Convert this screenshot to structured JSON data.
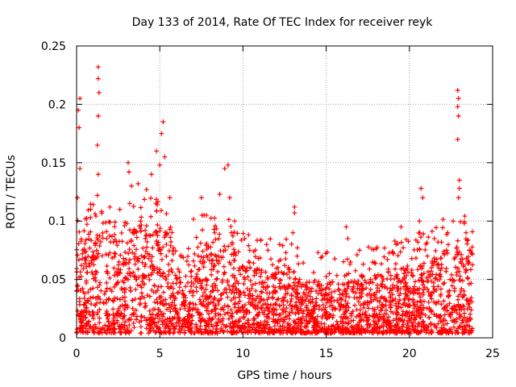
{
  "chart_data": {
    "type": "scatter",
    "title": "Day 133 of 2014, Rate Of TEC Index for receiver reyk",
    "xlabel": "GPS time / hours",
    "ylabel": "ROTI / TECUs",
    "xlim": [
      0,
      25
    ],
    "ylim": [
      0,
      0.25
    ],
    "xticks": [
      "0",
      "5",
      "10",
      "15",
      "20",
      "25"
    ],
    "yticks": [
      "0",
      "0.05",
      "0.1",
      "0.15",
      "0.2",
      "0.25"
    ],
    "grid": true,
    "marker": "+",
    "color": "#ff0000",
    "series": [
      {
        "name": "ROTI",
        "points_note": "dense band of points between ~0.005 and ~0.06 TECU from 0 to ~23.8 h, with peaks listed below",
        "peaks": [
          {
            "x": 0.1,
            "y": 0.195
          },
          {
            "x": 0.2,
            "y": 0.205
          },
          {
            "x": 0.15,
            "y": 0.18
          },
          {
            "x": 0.2,
            "y": 0.145
          },
          {
            "x": 0.05,
            "y": 0.12
          },
          {
            "x": 1.3,
            "y": 0.232
          },
          {
            "x": 1.3,
            "y": 0.222
          },
          {
            "x": 1.35,
            "y": 0.21
          },
          {
            "x": 1.3,
            "y": 0.19
          },
          {
            "x": 1.25,
            "y": 0.165
          },
          {
            "x": 1.3,
            "y": 0.14
          },
          {
            "x": 1.25,
            "y": 0.122
          },
          {
            "x": 2.0,
            "y": 0.112
          },
          {
            "x": 2.6,
            "y": 0.11
          },
          {
            "x": 3.1,
            "y": 0.15
          },
          {
            "x": 3.15,
            "y": 0.142
          },
          {
            "x": 3.3,
            "y": 0.13
          },
          {
            "x": 3.7,
            "y": 0.132
          },
          {
            "x": 4.5,
            "y": 0.14
          },
          {
            "x": 4.2,
            "y": 0.127
          },
          {
            "x": 4.8,
            "y": 0.16
          },
          {
            "x": 5.0,
            "y": 0.148
          },
          {
            "x": 5.2,
            "y": 0.185
          },
          {
            "x": 5.1,
            "y": 0.175
          },
          {
            "x": 5.3,
            "y": 0.155
          },
          {
            "x": 5.6,
            "y": 0.12
          },
          {
            "x": 7.5,
            "y": 0.12
          },
          {
            "x": 7.8,
            "y": 0.105
          },
          {
            "x": 8.3,
            "y": 0.09
          },
          {
            "x": 8.6,
            "y": 0.123
          },
          {
            "x": 8.9,
            "y": 0.145
          },
          {
            "x": 9.1,
            "y": 0.148
          },
          {
            "x": 9.2,
            "y": 0.12
          },
          {
            "x": 9.5,
            "y": 0.1
          },
          {
            "x": 9.3,
            "y": 0.09
          },
          {
            "x": 10.1,
            "y": 0.085
          },
          {
            "x": 11.5,
            "y": 0.075
          },
          {
            "x": 12.2,
            "y": 0.08
          },
          {
            "x": 13.1,
            "y": 0.112
          },
          {
            "x": 13.1,
            "y": 0.107
          },
          {
            "x": 13.0,
            "y": 0.09
          },
          {
            "x": 16.2,
            "y": 0.095
          },
          {
            "x": 16.3,
            "y": 0.085
          },
          {
            "x": 17.0,
            "y": 0.075
          },
          {
            "x": 19.5,
            "y": 0.095
          },
          {
            "x": 19.2,
            "y": 0.08
          },
          {
            "x": 20.6,
            "y": 0.1
          },
          {
            "x": 20.8,
            "y": 0.12
          },
          {
            "x": 20.7,
            "y": 0.128
          },
          {
            "x": 21.5,
            "y": 0.085
          },
          {
            "x": 22.3,
            "y": 0.09
          },
          {
            "x": 22.9,
            "y": 0.212
          },
          {
            "x": 22.95,
            "y": 0.205
          },
          {
            "x": 22.9,
            "y": 0.198
          },
          {
            "x": 22.95,
            "y": 0.19
          },
          {
            "x": 22.9,
            "y": 0.17
          },
          {
            "x": 23.0,
            "y": 0.135
          },
          {
            "x": 23.0,
            "y": 0.128
          },
          {
            "x": 22.95,
            "y": 0.12
          },
          {
            "x": 23.3,
            "y": 0.098
          },
          {
            "x": 23.4,
            "y": 0.09
          },
          {
            "x": 23.6,
            "y": 0.075
          }
        ]
      }
    ]
  }
}
